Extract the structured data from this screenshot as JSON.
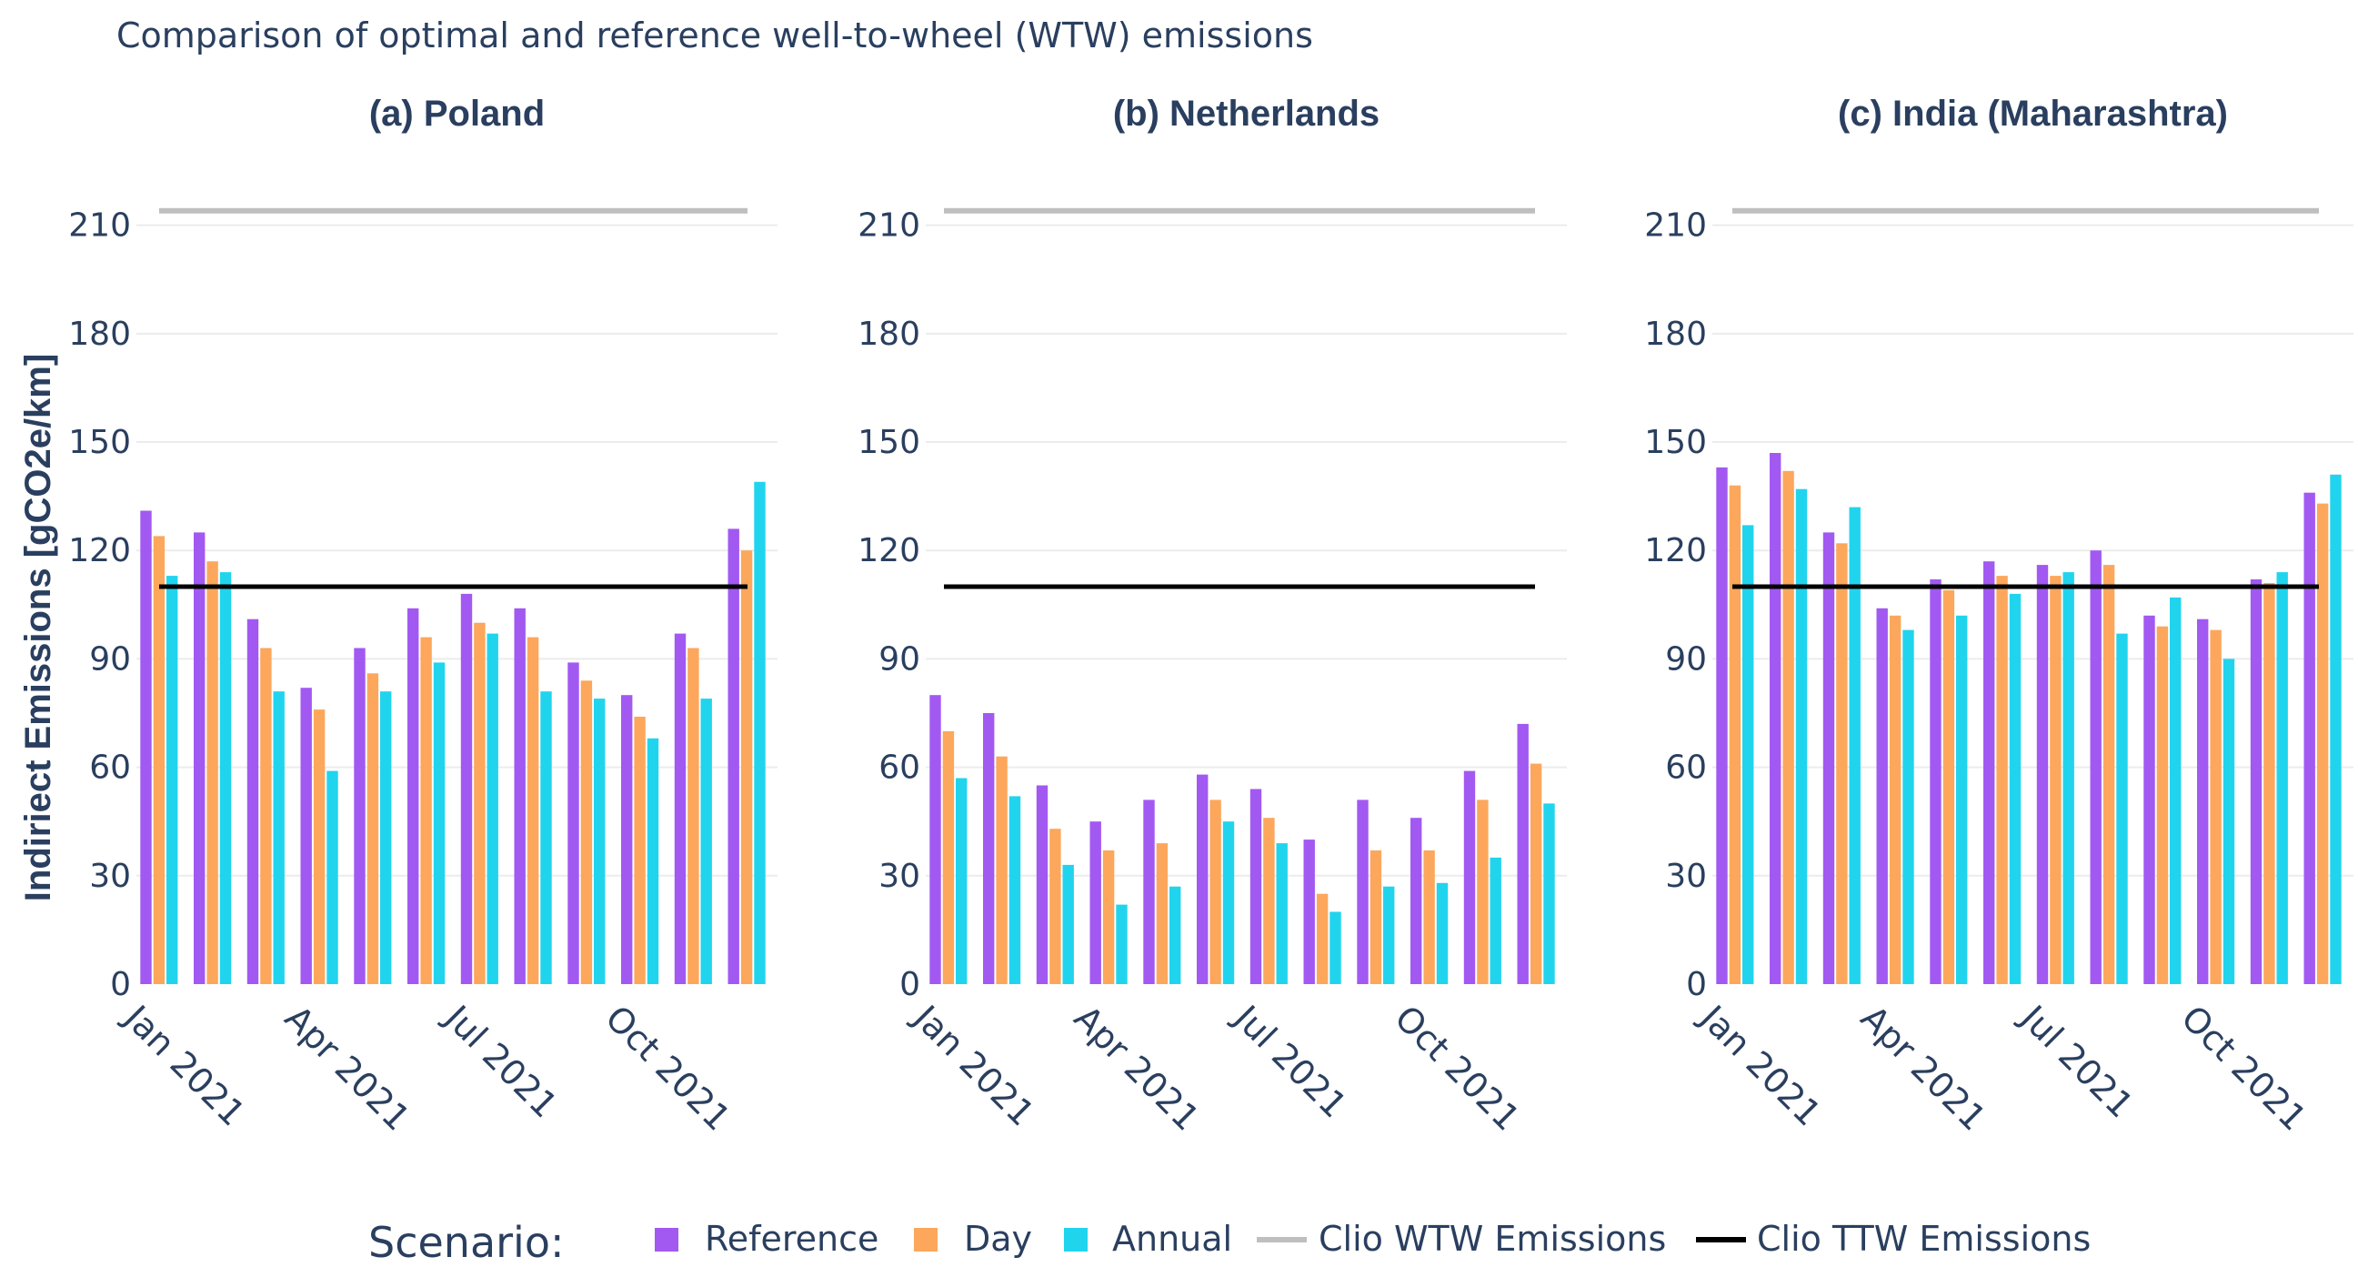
{
  "title": "Comparison of optimal and reference well-to-wheel (WTW) emissions",
  "ylabel": "Indiriect Emissions [gCO2e/km]",
  "colors": {
    "reference": "#a259f2",
    "day": "#fca75c",
    "annual": "#21d4ee",
    "wtw": "#bfbfbf",
    "ttw": "#000000"
  },
  "legend": {
    "title": "Scenario:",
    "items": [
      "Reference",
      "Day",
      "Annual",
      "Clio WTW Emissions",
      "Clio TTW Emissions"
    ]
  },
  "chart_data": [
    {
      "type": "bar",
      "title": "(a) Poland",
      "months": [
        "Jan",
        "Feb",
        "Mar",
        "Apr",
        "May",
        "Jun",
        "Jul",
        "Aug",
        "Sep",
        "Oct",
        "Nov",
        "Dec"
      ],
      "xtick_labels": [
        "Jan 2021",
        "Apr 2021",
        "Jul 2021",
        "Oct 2021"
      ],
      "yticks": [
        0,
        30,
        60,
        90,
        120,
        150,
        180,
        210
      ],
      "ylim": [
        0,
        222
      ],
      "series": [
        {
          "name": "Reference",
          "values": [
            131,
            125,
            101,
            82,
            93,
            104,
            108,
            104,
            89,
            80,
            97,
            126
          ]
        },
        {
          "name": "Day",
          "values": [
            124,
            117,
            93,
            76,
            86,
            96,
            100,
            96,
            84,
            74,
            93,
            120
          ]
        },
        {
          "name": "Annual",
          "values": [
            113,
            114,
            81,
            59,
            81,
            89,
            97,
            81,
            79,
            68,
            79,
            139
          ]
        }
      ],
      "wtw": 214,
      "ttw": 110
    },
    {
      "type": "bar",
      "title": "(b) Netherlands",
      "months": [
        "Jan",
        "Feb",
        "Mar",
        "Apr",
        "May",
        "Jun",
        "Jul",
        "Aug",
        "Sep",
        "Oct",
        "Nov",
        "Dec"
      ],
      "xtick_labels": [
        "Jan 2021",
        "Apr 2021",
        "Jul 2021",
        "Oct 2021"
      ],
      "yticks": [
        0,
        30,
        60,
        90,
        120,
        150,
        180,
        210
      ],
      "ylim": [
        0,
        222
      ],
      "series": [
        {
          "name": "Reference",
          "values": [
            80,
            75,
            55,
            45,
            51,
            58,
            54,
            40,
            51,
            46,
            59,
            72
          ]
        },
        {
          "name": "Day",
          "values": [
            70,
            63,
            43,
            37,
            39,
            51,
            46,
            25,
            37,
            37,
            51,
            61
          ]
        },
        {
          "name": "Annual",
          "values": [
            57,
            52,
            33,
            22,
            27,
            45,
            39,
            20,
            27,
            28,
            35,
            50
          ]
        }
      ],
      "wtw": 214,
      "ttw": 110
    },
    {
      "type": "bar",
      "title": "(c) India (Maharashtra)",
      "months": [
        "Jan",
        "Feb",
        "Mar",
        "Apr",
        "May",
        "Jun",
        "Jul",
        "Aug",
        "Sep",
        "Oct",
        "Nov",
        "Dec"
      ],
      "xtick_labels": [
        "Jan 2021",
        "Apr 2021",
        "Jul 2021",
        "Oct 2021"
      ],
      "yticks": [
        0,
        30,
        60,
        90,
        120,
        150,
        180,
        210
      ],
      "ylim": [
        0,
        222
      ],
      "series": [
        {
          "name": "Reference",
          "values": [
            143,
            147,
            125,
            104,
            112,
            117,
            116,
            120,
            102,
            101,
            112,
            136
          ]
        },
        {
          "name": "Day",
          "values": [
            138,
            142,
            122,
            102,
            109,
            113,
            113,
            116,
            99,
            98,
            111,
            133
          ]
        },
        {
          "name": "Annual",
          "values": [
            127,
            137,
            132,
            98,
            102,
            108,
            114,
            97,
            107,
            90,
            114,
            141
          ]
        }
      ],
      "wtw": 214,
      "ttw": 110
    }
  ]
}
